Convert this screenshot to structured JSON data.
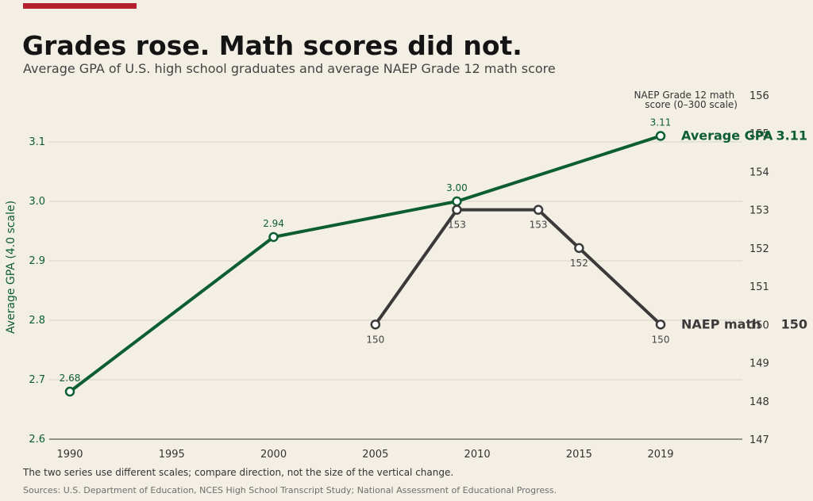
{
  "header": {
    "title": "Grades rose. Math scores did not.",
    "subtitle": "Average GPA of U.S. high school graduates and average NAEP Grade 12 math score"
  },
  "footer": {
    "note": "The two series use different scales; compare direction, not the size of the vertical change.",
    "source": "Sources: U.S. Department of Education, NCES High School Transcript Study; National Assessment of Educational Progress."
  },
  "colors": {
    "gpa": "#0c5e30",
    "naep": "#3a3a3a",
    "accent": "#b5202e",
    "background": "#f4efe5"
  },
  "chart_data": {
    "type": "line",
    "title": "Grades rose. Math scores did not.",
    "subtitle": "Average GPA of U.S. high school graduates and average NAEP Grade 12 math score",
    "x_ticks": [
      1990,
      1995,
      2000,
      2005,
      2010,
      2015,
      2019
    ],
    "xlim": [
      1989,
      2021
    ],
    "y_left": {
      "label": "Average GPA (4.0 scale)",
      "ylim": [
        2.6,
        3.2
      ],
      "ticks": [
        "2.6",
        "2.7",
        "2.8",
        "2.9",
        "3.0",
        "3.1"
      ]
    },
    "y_right": {
      "label_lines": [
        "NAEP Grade 12 math",
        "score (0–300 scale)"
      ],
      "ylim": [
        147,
        156
      ],
      "ticks": [
        "147",
        "148",
        "149",
        "150",
        "151",
        "152",
        "153",
        "154",
        "155",
        "156"
      ]
    },
    "grid": true,
    "series": [
      {
        "name": "Average GPA",
        "axis": "left",
        "end_label": "3.11",
        "points": [
          {
            "x": 1990,
            "y": 2.68,
            "label": "2.68"
          },
          {
            "x": 2000,
            "y": 2.94,
            "label": "2.94"
          },
          {
            "x": 2009,
            "y": 3.0,
            "label": "3.00"
          },
          {
            "x": 2019,
            "y": 3.11,
            "label": "3.11"
          }
        ]
      },
      {
        "name": "NAEP math",
        "axis": "right",
        "end_label": "150",
        "points": [
          {
            "x": 2005,
            "y": 150,
            "label": "150"
          },
          {
            "x": 2009,
            "y": 153,
            "label": "153"
          },
          {
            "x": 2013,
            "y": 153,
            "label": "153"
          },
          {
            "x": 2015,
            "y": 152,
            "label": "152"
          },
          {
            "x": 2019,
            "y": 150,
            "label": "150"
          }
        ]
      }
    ]
  }
}
